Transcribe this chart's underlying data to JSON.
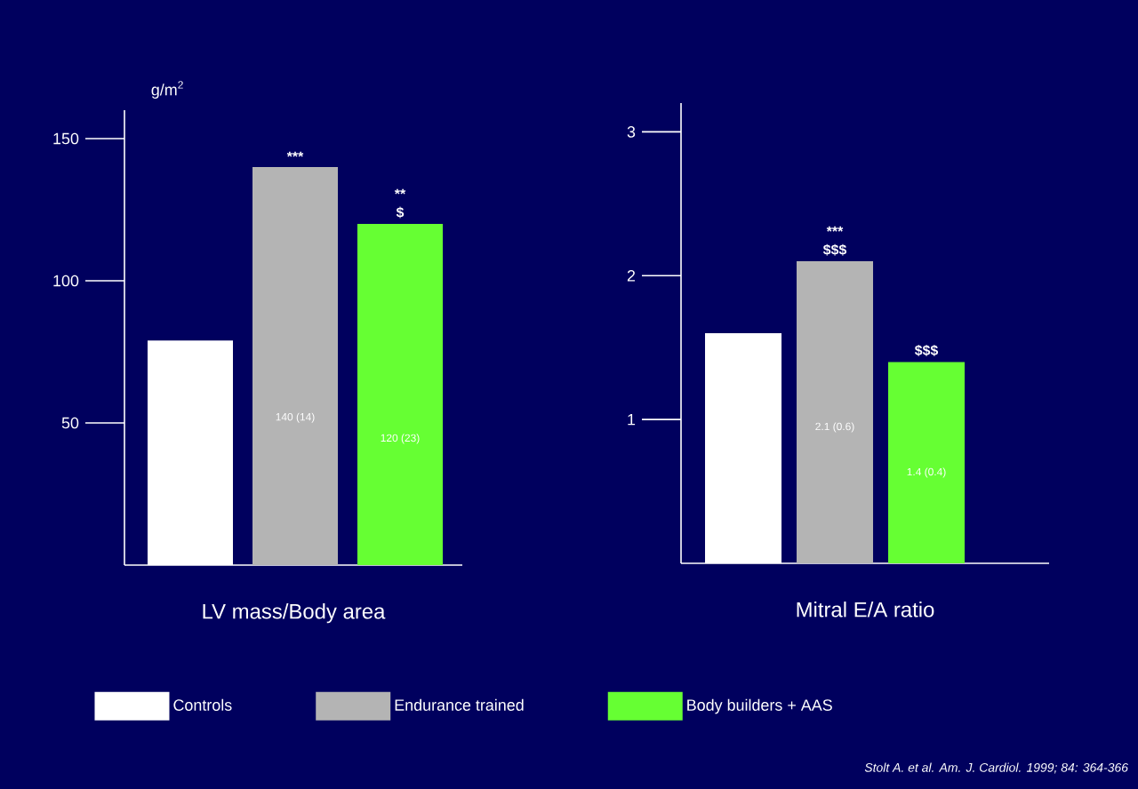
{
  "chart_data": [
    {
      "type": "bar",
      "categories": [
        null
      ],
      "xlabel": "LV mass/Body area",
      "ylabel": "g/m$^{2}$",
      "ylim": [
        0,
        160
      ],
      "yticks": [
        50,
        100,
        150
      ],
      "legend": "bottom",
      "series": [
        {
          "name": "Controls",
          "color": "#ffffff",
          "values": [
            79
          ]
        },
        {
          "name": "Endurance trained",
          "color": "#b4b4b4",
          "values": [
            140
          ],
          "value_labels": [
            "140 (14)"
          ]
        },
        {
          "name": "Body builders + AAS",
          "color": "#66ff33",
          "values": [
            120
          ],
          "value_labels": [
            "120 (23)"
          ]
        }
      ],
      "annotations": [
        {
          "text": "***",
          "y": 140
        },
        {
          "text": "$",
          "y": 120
        },
        {
          "text": "**",
          "y": 120
        }
      ]
    },
    {
      "type": "bar",
      "categories": [
        null
      ],
      "xlabel": "Mitral E/A ratio",
      "ylim": [
        0,
        3.2
      ],
      "yticks": [
        1,
        2,
        3
      ],
      "series": [
        {
          "color": "#ffffff",
          "values": [
            1.6
          ]
        },
        {
          "color": "#b4b4b4",
          "values": [
            2.1
          ],
          "value_labels": [
            "2.1 (0.6)"
          ]
        },
        {
          "color": "#66ff33",
          "values": [
            1.4
          ],
          "value_labels": [
            "1.4 (0.4)"
          ]
        }
      ],
      "annotations": [
        {
          "text": "$$$",
          "y": 2.1
        },
        {
          "text": "***",
          "y": 2.1
        },
        {
          "text": "$$$",
          "y": 1.4
        },
        "Stolt A. et al. Am. J. Cardiol. 1999; 84: 364-366"
      ]
    }
  ]
}
